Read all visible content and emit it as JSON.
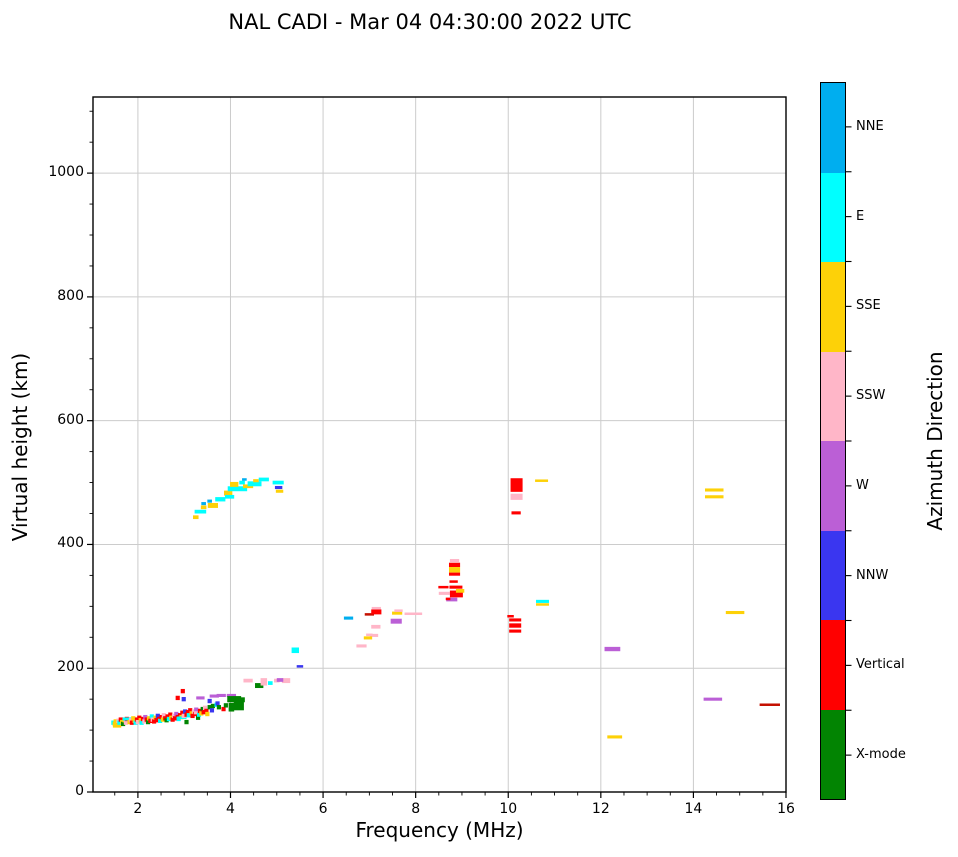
{
  "title": "NAL CADI - Mar 04 04:30:00 2022 UTC",
  "chart_data": {
    "type": "scatter",
    "title": "NAL CADI - Mar 04 04:30:00 2022 UTC",
    "xlabel": "Frequency (MHz)",
    "ylabel": "Virtual height (km)",
    "xlim": [
      1.03,
      16
    ],
    "ylim": [
      0,
      1123
    ],
    "x_ticks": [
      2,
      4,
      6,
      8,
      10,
      12,
      14,
      16
    ],
    "y_ticks": [
      0,
      200,
      400,
      600,
      800,
      1000
    ],
    "x_minor_step": 0.5,
    "y_minor_step": 50,
    "grid": true,
    "grid_color": "#cccccc",
    "legend_position": "right-colorbar",
    "colorbar": {
      "title": "Azimuth Direction",
      "entries": [
        {
          "label": "NNE",
          "color": "#00aeef"
        },
        {
          "label": "E",
          "color": "#00ffff"
        },
        {
          "label": "SSE",
          "color": "#fdd108"
        },
        {
          "label": "SSW",
          "color": "#ffb6c8"
        },
        {
          "label": "W",
          "color": "#bb5fd6"
        },
        {
          "label": "NNW",
          "color": "#3a36f0"
        },
        {
          "label": "Vertical",
          "color": "#ff0000"
        },
        {
          "label": "X-mode",
          "color": "#028402"
        }
      ],
      "extra_colors": {
        "dred": "#c41000"
      }
    },
    "marker_default": {
      "w_mhz": 0.09,
      "h_km": 7
    },
    "points": [
      [
        1.47,
        112,
        "E"
      ],
      [
        1.5,
        110,
        "SSE"
      ],
      [
        1.52,
        114,
        "SSE"
      ],
      [
        1.55,
        109,
        "SSE",
        0.18,
        10
      ],
      [
        1.58,
        115,
        "SSW"
      ],
      [
        1.6,
        112,
        "E"
      ],
      [
        1.63,
        117,
        "Vertical"
      ],
      [
        1.66,
        113,
        "SSE"
      ],
      [
        1.68,
        110,
        "X-mode"
      ],
      [
        1.71,
        116,
        "SSE"
      ],
      [
        1.74,
        112,
        "SSW"
      ],
      [
        1.76,
        118,
        "Vertical"
      ],
      [
        1.8,
        118,
        "E",
        0.26,
        5
      ],
      [
        1.82,
        113,
        "SSE"
      ],
      [
        1.85,
        116,
        "SSW"
      ],
      [
        1.87,
        112,
        "Vertical"
      ],
      [
        1.9,
        119,
        "SSE"
      ],
      [
        1.93,
        115,
        "SSE"
      ],
      [
        1.95,
        112,
        "E"
      ],
      [
        1.98,
        117,
        "Vertical"
      ],
      [
        2.0,
        113,
        "SSW"
      ],
      [
        2.03,
        120,
        "Vertical"
      ],
      [
        2.06,
        116,
        "SSE"
      ],
      [
        2.08,
        112,
        "E"
      ],
      [
        2.11,
        118,
        "Vertical"
      ],
      [
        2.14,
        114,
        "SSW"
      ],
      [
        2.16,
        121,
        "W"
      ],
      [
        2.19,
        117,
        "Vertical"
      ],
      [
        2.22,
        113,
        "X-mode"
      ],
      [
        2.24,
        119,
        "SSE"
      ],
      [
        2.27,
        115,
        "Vertical"
      ],
      [
        2.3,
        122,
        "E"
      ],
      [
        2.32,
        117,
        "SSW"
      ],
      [
        2.35,
        114,
        "Vertical"
      ],
      [
        2.38,
        120,
        "SSE"
      ],
      [
        2.4,
        116,
        "Vertical"
      ],
      [
        2.43,
        123,
        "NNW"
      ],
      [
        2.46,
        118,
        "Vertical"
      ],
      [
        2.48,
        115,
        "E"
      ],
      [
        2.51,
        121,
        "Vertical"
      ],
      [
        2.54,
        117,
        "SSE"
      ],
      [
        2.56,
        124,
        "SSW"
      ],
      [
        2.59,
        119,
        "Vertical"
      ],
      [
        2.62,
        116,
        "X-mode"
      ],
      [
        2.64,
        122,
        "Vertical"
      ],
      [
        2.67,
        118,
        "E"
      ],
      [
        2.7,
        125,
        "Vertical"
      ],
      [
        2.72,
        120,
        "SSE"
      ],
      [
        2.75,
        117,
        "Vertical"
      ],
      [
        2.78,
        123,
        "SSW"
      ],
      [
        2.8,
        119,
        "Vertical"
      ],
      [
        2.83,
        126,
        "W"
      ],
      [
        2.86,
        121,
        "Vertical"
      ],
      [
        2.86,
        152,
        "Vertical"
      ],
      [
        2.88,
        118,
        "E"
      ],
      [
        2.91,
        124,
        "Vertical"
      ],
      [
        2.94,
        121,
        "SSE"
      ],
      [
        2.95,
        120,
        "E",
        0.2,
        4
      ],
      [
        2.96,
        128,
        "Vertical"
      ],
      [
        2.97,
        163,
        "Vertical"
      ],
      [
        2.99,
        150,
        "NNW"
      ],
      [
        2.99,
        123,
        "SSW"
      ],
      [
        3.02,
        130,
        "NNW"
      ],
      [
        3.05,
        125,
        "Vertical"
      ],
      [
        3.05,
        113,
        "X-mode"
      ],
      [
        3.08,
        129,
        "Vertical"
      ],
      [
        3.1,
        124,
        "E"
      ],
      [
        3.13,
        132,
        "Vertical"
      ],
      [
        3.16,
        127,
        "SSE"
      ],
      [
        3.18,
        123,
        "Vertical"
      ],
      [
        3.21,
        130,
        "SSW"
      ],
      [
        3.24,
        126,
        "Vertical"
      ],
      [
        3.26,
        133,
        "W"
      ],
      [
        3.28,
        128,
        "SSW",
        0.14,
        5
      ],
      [
        3.3,
        120,
        "X-mode"
      ],
      [
        3.32,
        125,
        "E"
      ],
      [
        3.34,
        131,
        "Vertical"
      ],
      [
        3.35,
        152,
        "W",
        0.18,
        5
      ],
      [
        3.37,
        127,
        "SSE"
      ],
      [
        3.4,
        134,
        "X-mode"
      ],
      [
        3.42,
        129,
        "Vertical"
      ],
      [
        3.45,
        136,
        "SSW"
      ],
      [
        3.48,
        131,
        "Vertical"
      ],
      [
        3.5,
        126,
        "SSE"
      ],
      [
        3.55,
        147,
        "NNW"
      ],
      [
        3.55,
        137,
        "X-mode"
      ],
      [
        3.6,
        132,
        "NNW"
      ],
      [
        3.62,
        139,
        "X-mode"
      ],
      [
        3.65,
        155,
        "W",
        0.2,
        5
      ],
      [
        3.7,
        141,
        "E"
      ],
      [
        3.72,
        143,
        "NNW"
      ],
      [
        3.75,
        137,
        "X-mode"
      ],
      [
        3.8,
        156,
        "W",
        0.2,
        5
      ],
      [
        3.85,
        134,
        "Vertical"
      ],
      [
        3.9,
        140,
        "X-mode"
      ],
      [
        4.02,
        156,
        "W",
        0.2,
        5
      ],
      [
        4.08,
        150,
        "X-mode",
        0.3,
        10
      ],
      [
        4.02,
        137,
        "X-mode",
        0.12,
        14
      ],
      [
        4.18,
        140,
        "X-mode",
        0.22,
        16
      ],
      [
        4.26,
        149,
        "X-mode",
        0.1,
        8
      ],
      [
        4.62,
        172,
        "X-mode",
        0.18,
        8
      ],
      [
        4.38,
        180,
        "SSW",
        0.2,
        6
      ],
      [
        4.72,
        178,
        "SSW",
        0.14,
        12
      ],
      [
        4.86,
        176,
        "E",
        0.1,
        6
      ],
      [
        5.0,
        180,
        "SSW",
        0.12,
        6
      ],
      [
        5.2,
        180,
        "SSW",
        0.18,
        8
      ],
      [
        3.25,
        444,
        "SSE",
        0.12,
        6
      ],
      [
        3.35,
        453,
        "E",
        0.25,
        6
      ],
      [
        3.42,
        460,
        "SSE",
        0.12,
        6
      ],
      [
        3.42,
        466,
        "NNE",
        0.1,
        5
      ],
      [
        3.55,
        470,
        "NNE",
        0.1,
        5
      ],
      [
        3.62,
        463,
        "SSE",
        0.22,
        8
      ],
      [
        3.78,
        473,
        "E",
        0.22,
        7
      ],
      [
        3.95,
        483,
        "SSE",
        0.18,
        8
      ],
      [
        3.98,
        477,
        "E",
        0.2,
        6
      ],
      [
        4.15,
        490,
        "E",
        0.42,
        8
      ],
      [
        4.08,
        497,
        "SSE",
        0.18,
        8
      ],
      [
        4.25,
        500,
        "E",
        0.12,
        6
      ],
      [
        4.3,
        505,
        "NNE",
        0.1,
        4
      ],
      [
        4.38,
        494,
        "SSE",
        0.22,
        6
      ],
      [
        4.52,
        498,
        "E",
        0.3,
        8
      ],
      [
        4.55,
        503,
        "SSE",
        0.12,
        5
      ],
      [
        4.72,
        505,
        "E",
        0.22,
        6
      ],
      [
        5.03,
        500,
        "E",
        0.24,
        6
      ],
      [
        5.04,
        492,
        "NNW",
        0.16,
        5
      ],
      [
        5.06,
        486,
        "SSE",
        0.16,
        5
      ],
      [
        5.07,
        181,
        "W",
        0.14,
        6
      ],
      [
        5.4,
        229,
        "E",
        0.16,
        9
      ],
      [
        5.5,
        203,
        "NNW",
        0.14,
        4
      ],
      [
        6.55,
        281,
        "NNE",
        0.2,
        5
      ],
      [
        7.0,
        287,
        "dred",
        0.2,
        4
      ],
      [
        7.15,
        291,
        "Vertical",
        0.22,
        8
      ],
      [
        7.15,
        297,
        "SSW",
        0.2,
        4
      ],
      [
        7.14,
        267,
        "SSW",
        0.2,
        6
      ],
      [
        7.1,
        253,
        "SSW",
        0.18,
        5
      ],
      [
        6.97,
        249,
        "SSE",
        0.18,
        5
      ],
      [
        7.0,
        254,
        "SSW",
        0.14,
        4
      ],
      [
        6.83,
        236,
        "SSW",
        0.22,
        5
      ],
      [
        7.6,
        289,
        "SSE",
        0.22,
        5
      ],
      [
        7.63,
        293,
        "SSW",
        0.18,
        4
      ],
      [
        7.95,
        288,
        "SSW",
        0.38,
        3
      ],
      [
        7.58,
        276,
        "W",
        0.24,
        8
      ],
      [
        8.84,
        374,
        "SSW",
        0.2,
        5
      ],
      [
        8.84,
        367,
        "Vertical",
        0.24,
        7
      ],
      [
        8.84,
        359,
        "SSE",
        0.24,
        9
      ],
      [
        8.84,
        352,
        "Vertical",
        0.24,
        5
      ],
      [
        8.82,
        340,
        "Vertical",
        0.18,
        4
      ],
      [
        8.6,
        331,
        "Vertical",
        0.22,
        4
      ],
      [
        8.87,
        331,
        "Vertical",
        0.28,
        5
      ],
      [
        8.62,
        321,
        "SSW",
        0.24,
        5
      ],
      [
        8.88,
        320,
        "Vertical",
        0.28,
        11
      ],
      [
        8.96,
        325,
        "SSE",
        0.18,
        6
      ],
      [
        8.78,
        311,
        "W",
        0.24,
        6
      ],
      [
        8.7,
        312,
        "Vertical",
        0.1,
        4
      ],
      [
        10.05,
        284,
        "Vertical",
        0.14,
        4
      ],
      [
        10.15,
        278,
        "Vertical",
        0.26,
        5
      ],
      [
        10.15,
        269,
        "Vertical",
        0.26,
        7
      ],
      [
        10.15,
        260,
        "Vertical",
        0.26,
        5
      ],
      [
        10.18,
        496,
        "Vertical",
        0.26,
        22
      ],
      [
        10.18,
        477,
        "SSW",
        0.26,
        10
      ],
      [
        10.17,
        451,
        "Vertical",
        0.2,
        5
      ],
      [
        10.72,
        503,
        "SSE",
        0.28,
        4
      ],
      [
        10.74,
        308,
        "E",
        0.28,
        5
      ],
      [
        10.74,
        303,
        "SSE",
        0.28,
        4
      ],
      [
        12.25,
        231,
        "W",
        0.34,
        7
      ],
      [
        12.3,
        89,
        "SSE",
        0.32,
        5
      ],
      [
        14.45,
        488,
        "SSE",
        0.4,
        5
      ],
      [
        14.45,
        477,
        "SSE",
        0.4,
        5
      ],
      [
        14.9,
        290,
        "SSE",
        0.4,
        5
      ],
      [
        14.42,
        150,
        "W",
        0.4,
        5
      ],
      [
        15.65,
        141,
        "dred",
        0.44,
        3
      ]
    ]
  }
}
